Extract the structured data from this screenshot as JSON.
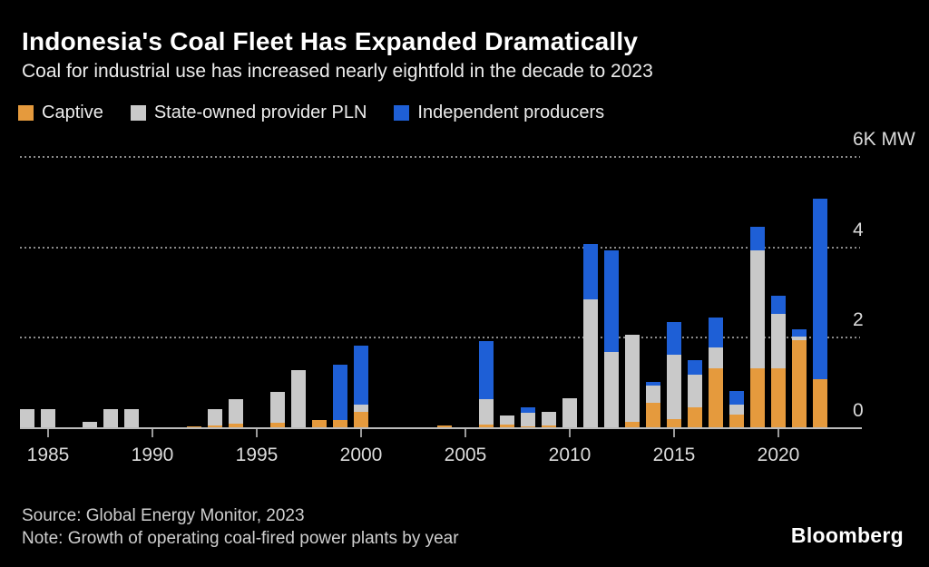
{
  "header": {
    "title": "Indonesia's Coal Fleet Has Expanded Dramatically",
    "subtitle": "Coal for industrial use has increased nearly eightfold in the decade to 2023"
  },
  "legend": {
    "items": [
      {
        "label": "Captive",
        "color": "#E59A3D"
      },
      {
        "label": "State-owned provider PLN",
        "color": "#C9C9C9"
      },
      {
        "label": "Independent producers",
        "color": "#1E5FD6"
      }
    ]
  },
  "chart_data": {
    "type": "bar",
    "stacked": true,
    "unit": "MW",
    "title": "Indonesia's Coal Fleet Has Expanded Dramatically",
    "ylim": [
      0,
      6000
    ],
    "grid": "dotted horizontal",
    "legend_position": "top",
    "y_ticks": [
      {
        "value": 6000,
        "label": "6K MW"
      },
      {
        "value": 4000,
        "label": "4"
      },
      {
        "value": 2000,
        "label": "2"
      },
      {
        "value": 0,
        "label": "0"
      }
    ],
    "x_tick_years": [
      1985,
      1990,
      1995,
      2000,
      2005,
      2010,
      2015,
      2020
    ],
    "years": [
      1984,
      1985,
      1986,
      1987,
      1988,
      1989,
      1990,
      1991,
      1992,
      1993,
      1994,
      1995,
      1996,
      1997,
      1998,
      1999,
      2000,
      2001,
      2002,
      2003,
      2004,
      2005,
      2006,
      2007,
      2008,
      2009,
      2010,
      2011,
      2012,
      2013,
      2014,
      2015,
      2016,
      2017,
      2018,
      2019,
      2020,
      2021,
      2022
    ],
    "series": [
      {
        "name": "Captive",
        "color": "#E59A3D",
        "values": [
          0,
          0,
          0,
          0,
          0,
          0,
          0,
          0,
          40,
          60,
          100,
          0,
          120,
          0,
          180,
          180,
          360,
          0,
          0,
          0,
          60,
          0,
          80,
          80,
          40,
          60,
          0,
          0,
          0,
          140,
          560,
          200,
          460,
          1330,
          300,
          1330,
          1330,
          1950,
          1090
        ]
      },
      {
        "name": "State-owned provider PLN",
        "color": "#C9C9C9",
        "values": [
          420,
          420,
          0,
          140,
          420,
          420,
          0,
          0,
          0,
          360,
          540,
          0,
          680,
          1290,
          0,
          0,
          160,
          0,
          0,
          0,
          0,
          0,
          560,
          200,
          300,
          300,
          660,
          2840,
          1690,
          1930,
          380,
          1430,
          720,
          460,
          220,
          2600,
          1190,
          80,
          0
        ]
      },
      {
        "name": "Independent producers",
        "color": "#1E5FD6",
        "values": [
          0,
          0,
          0,
          0,
          0,
          0,
          0,
          0,
          0,
          0,
          0,
          0,
          0,
          0,
          0,
          1230,
          1310,
          0,
          0,
          0,
          0,
          0,
          1290,
          0,
          120,
          0,
          0,
          1230,
          2250,
          0,
          80,
          720,
          320,
          660,
          300,
          520,
          400,
          160,
          3980
        ]
      }
    ]
  },
  "footer": {
    "source": "Source: Global Energy Monitor, 2023",
    "note": "Note: Growth of operating coal-fired power plants by year",
    "brand": "Bloomberg"
  },
  "colors": {
    "background": "#000000",
    "title_text": "#FFFFFF",
    "body_text": "#ECECEC",
    "axis_text": "#DADADA",
    "captive_orange": "#E59A3D",
    "pln_gray": "#C9C9C9",
    "ipp_blue": "#1E5FD6"
  }
}
